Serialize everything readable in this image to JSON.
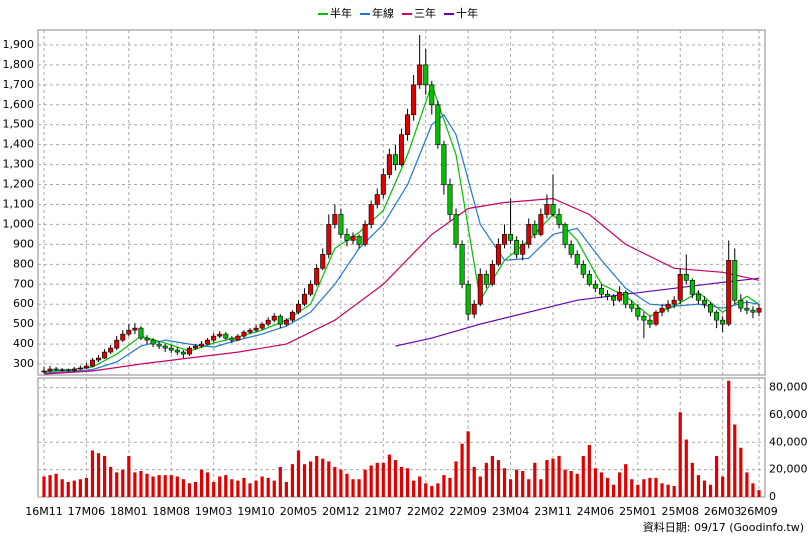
{
  "chart_data": {
    "type": "candlestick",
    "legend": "top",
    "grid": true,
    "up_color": "#e00000",
    "down_color": "#00c000",
    "categories": [
      "16M11",
      null,
      null,
      null,
      null,
      null,
      null,
      "17M06",
      null,
      null,
      null,
      null,
      null,
      null,
      "18M01",
      null,
      null,
      null,
      null,
      null,
      null,
      "18M08",
      null,
      null,
      null,
      null,
      null,
      null,
      "19M03",
      null,
      null,
      null,
      null,
      null,
      null,
      "19M10",
      null,
      null,
      null,
      null,
      null,
      null,
      "20M05",
      null,
      null,
      null,
      null,
      null,
      null,
      "20M12",
      null,
      null,
      null,
      null,
      null,
      null,
      "21M07",
      null,
      null,
      null,
      null,
      null,
      null,
      "22M02",
      null,
      null,
      null,
      null,
      null,
      null,
      "22M09",
      null,
      null,
      null,
      null,
      null,
      null,
      "23M04",
      null,
      null,
      null,
      null,
      null,
      null,
      "23M11",
      null,
      null,
      null,
      null,
      null,
      null,
      "24M06",
      null,
      null,
      null,
      null,
      null,
      null,
      "25M01",
      null,
      null,
      null,
      null,
      null,
      null,
      "25M08",
      null,
      null,
      null,
      null,
      null,
      null,
      "26M03",
      null,
      null,
      null,
      null,
      null,
      "26M09"
    ],
    "ohlc": [
      [
        260,
        285,
        255,
        265
      ],
      [
        265,
        290,
        260,
        275
      ],
      [
        275,
        285,
        265,
        270
      ],
      [
        270,
        280,
        262,
        272
      ],
      [
        272,
        278,
        260,
        268
      ],
      [
        268,
        285,
        262,
        275
      ],
      [
        275,
        292,
        270,
        280
      ],
      [
        280,
        305,
        275,
        290
      ],
      [
        290,
        330,
        285,
        320
      ],
      [
        320,
        345,
        310,
        330
      ],
      [
        330,
        375,
        325,
        360
      ],
      [
        360,
        395,
        350,
        380
      ],
      [
        380,
        440,
        370,
        420
      ],
      [
        420,
        470,
        410,
        450
      ],
      [
        450,
        500,
        440,
        470
      ],
      [
        470,
        505,
        450,
        480
      ],
      [
        480,
        490,
        420,
        430
      ],
      [
        430,
        445,
        400,
        420
      ],
      [
        420,
        430,
        385,
        400
      ],
      [
        400,
        415,
        375,
        390
      ],
      [
        390,
        400,
        360,
        380
      ],
      [
        380,
        395,
        355,
        370
      ],
      [
        370,
        385,
        345,
        360
      ],
      [
        360,
        370,
        330,
        350
      ],
      [
        350,
        390,
        340,
        380
      ],
      [
        380,
        400,
        370,
        390
      ],
      [
        390,
        415,
        380,
        400
      ],
      [
        400,
        430,
        395,
        420
      ],
      [
        420,
        455,
        410,
        440
      ],
      [
        440,
        465,
        430,
        450
      ],
      [
        450,
        460,
        420,
        430
      ],
      [
        430,
        440,
        405,
        420
      ],
      [
        420,
        450,
        415,
        440
      ],
      [
        440,
        470,
        430,
        460
      ],
      [
        460,
        480,
        450,
        470
      ],
      [
        470,
        495,
        460,
        480
      ],
      [
        480,
        510,
        470,
        500
      ],
      [
        500,
        535,
        490,
        520
      ],
      [
        520,
        555,
        510,
        540
      ],
      [
        540,
        550,
        480,
        500
      ],
      [
        500,
        530,
        490,
        520
      ],
      [
        520,
        570,
        510,
        560
      ],
      [
        560,
        620,
        550,
        600
      ],
      [
        600,
        680,
        590,
        650
      ],
      [
        650,
        720,
        640,
        700
      ],
      [
        700,
        800,
        690,
        780
      ],
      [
        780,
        880,
        770,
        850
      ],
      [
        850,
        1050,
        830,
        1000
      ],
      [
        1000,
        1100,
        980,
        1050
      ],
      [
        1050,
        1080,
        930,
        950
      ],
      [
        950,
        980,
        890,
        920
      ],
      [
        920,
        960,
        900,
        940
      ],
      [
        940,
        950,
        880,
        900
      ],
      [
        900,
        1020,
        890,
        1000
      ],
      [
        1000,
        1120,
        980,
        1100
      ],
      [
        1100,
        1180,
        1080,
        1150
      ],
      [
        1150,
        1280,
        1130,
        1250
      ],
      [
        1250,
        1380,
        1230,
        1350
      ],
      [
        1350,
        1400,
        1270,
        1300
      ],
      [
        1300,
        1480,
        1290,
        1450
      ],
      [
        1450,
        1580,
        1420,
        1550
      ],
      [
        1550,
        1750,
        1520,
        1700
      ],
      [
        1700,
        1950,
        1680,
        1800
      ],
      [
        1800,
        1880,
        1650,
        1700
      ],
      [
        1700,
        1720,
        1550,
        1600
      ],
      [
        1600,
        1620,
        1380,
        1400
      ],
      [
        1400,
        1420,
        1150,
        1200
      ],
      [
        1200,
        1230,
        1020,
        1050
      ],
      [
        1050,
        1080,
        880,
        900
      ],
      [
        900,
        920,
        680,
        700
      ],
      [
        700,
        720,
        520,
        550
      ],
      [
        550,
        620,
        530,
        600
      ],
      [
        600,
        780,
        590,
        750
      ],
      [
        750,
        770,
        680,
        700
      ],
      [
        700,
        820,
        690,
        800
      ],
      [
        800,
        930,
        790,
        900
      ],
      [
        900,
        1000,
        880,
        950
      ],
      [
        950,
        1130,
        900,
        920
      ],
      [
        920,
        940,
        830,
        850
      ],
      [
        850,
        920,
        820,
        900
      ],
      [
        900,
        1030,
        880,
        1000
      ],
      [
        1000,
        1020,
        930,
        950
      ],
      [
        950,
        1080,
        940,
        1050
      ],
      [
        1050,
        1150,
        1030,
        1100
      ],
      [
        1100,
        1250,
        1040,
        1050
      ],
      [
        1050,
        1080,
        980,
        1000
      ],
      [
        1000,
        1010,
        880,
        900
      ],
      [
        900,
        920,
        830,
        850
      ],
      [
        850,
        870,
        780,
        800
      ],
      [
        800,
        820,
        730,
        750
      ],
      [
        750,
        770,
        690,
        700
      ],
      [
        700,
        720,
        660,
        680
      ],
      [
        680,
        700,
        630,
        650
      ],
      [
        650,
        670,
        620,
        640
      ],
      [
        640,
        650,
        590,
        620
      ],
      [
        620,
        690,
        610,
        660
      ],
      [
        660,
        670,
        580,
        600
      ],
      [
        600,
        620,
        560,
        580
      ],
      [
        580,
        600,
        520,
        540
      ],
      [
        540,
        560,
        430,
        520
      ],
      [
        520,
        540,
        480,
        500
      ],
      [
        500,
        570,
        490,
        560
      ],
      [
        560,
        600,
        540,
        580
      ],
      [
        580,
        620,
        560,
        600
      ],
      [
        600,
        640,
        580,
        620
      ],
      [
        620,
        780,
        600,
        750
      ],
      [
        750,
        850,
        700,
        720
      ],
      [
        720,
        730,
        630,
        650
      ],
      [
        650,
        670,
        600,
        620
      ],
      [
        620,
        640,
        580,
        600
      ],
      [
        600,
        610,
        540,
        560
      ],
      [
        560,
        570,
        480,
        520
      ],
      [
        520,
        540,
        460,
        500
      ],
      [
        500,
        920,
        490,
        820
      ],
      [
        820,
        880,
        600,
        620
      ],
      [
        620,
        650,
        560,
        580
      ],
      [
        580,
        620,
        550,
        570
      ],
      [
        570,
        590,
        530,
        560
      ],
      [
        560,
        600,
        540,
        580
      ]
    ],
    "series": [
      {
        "name": "半年",
        "color": "#00c000",
        "x": [
          0,
          4,
          8,
          12,
          16,
          20,
          24,
          28,
          32,
          36,
          40,
          44,
          48,
          52,
          56,
          60,
          64,
          68,
          72,
          76,
          80,
          84,
          88,
          92,
          96,
          100,
          104,
          108,
          112,
          116,
          118
        ],
        "values": [
          262,
          270,
          285,
          350,
          440,
          405,
          365,
          405,
          435,
          470,
          520,
          600,
          880,
          960,
          1070,
          1350,
          1700,
          1350,
          620,
          820,
          920,
          1050,
          920,
          700,
          640,
          540,
          590,
          660,
          560,
          640,
          600
        ]
      },
      {
        "name": "年線",
        "color": "#1f78d1",
        "x": [
          0,
          4,
          8,
          12,
          16,
          20,
          24,
          28,
          32,
          36,
          40,
          44,
          48,
          52,
          56,
          60,
          64,
          66,
          68,
          72,
          76,
          80,
          84,
          88,
          92,
          96,
          100,
          104,
          108,
          112,
          116,
          118
        ],
        "values": [
          255,
          262,
          272,
          310,
          390,
          420,
          400,
          385,
          420,
          450,
          490,
          560,
          700,
          880,
          1000,
          1200,
          1500,
          1550,
          1450,
          1000,
          820,
          830,
          950,
          980,
          820,
          680,
          600,
          590,
          600,
          580,
          610,
          600
        ]
      },
      {
        "name": "三年",
        "color": "#cc0066",
        "x": [
          0,
          8,
          16,
          24,
          32,
          40,
          48,
          56,
          64,
          70,
          76,
          84,
          90,
          96,
          104,
          112,
          118
        ],
        "values": [
          250,
          265,
          300,
          330,
          360,
          400,
          520,
          700,
          950,
          1080,
          1110,
          1130,
          1050,
          900,
          780,
          760,
          720
        ]
      },
      {
        "name": "十年",
        "color": "#6a00b0",
        "x": [
          58,
          64,
          72,
          80,
          88,
          96,
          104,
          112,
          118
        ],
        "values": [
          390,
          430,
          500,
          560,
          620,
          650,
          680,
          710,
          730
        ]
      }
    ],
    "ylim": [
      245,
      1975
    ],
    "yticks": [
      300,
      400,
      500,
      600,
      700,
      800,
      900,
      {
        "value": 1000,
        "label": "1,000"
      },
      {
        "value": 1100,
        "label": "1,100"
      },
      {
        "value": 1200,
        "label": "1,200"
      },
      {
        "value": 1300,
        "label": "1,300"
      },
      {
        "value": 1400,
        "label": "1,400"
      },
      {
        "value": 1500,
        "label": "1,500"
      },
      {
        "value": 1600,
        "label": "1,600"
      },
      {
        "value": 1700,
        "label": "1,700"
      },
      {
        "value": 1800,
        "label": "1,800"
      },
      {
        "value": 1900,
        "label": "1,900"
      }
    ],
    "volume": {
      "type": "bar",
      "color": "#e00000",
      "values": [
        15000,
        16000,
        17000,
        13000,
        11000,
        12000,
        13000,
        14000,
        34000,
        32000,
        30000,
        22000,
        18000,
        20000,
        30000,
        18000,
        19000,
        17000,
        15000,
        16000,
        16000,
        16000,
        15000,
        13000,
        10000,
        11000,
        20000,
        18000,
        11000,
        15000,
        16000,
        13000,
        12000,
        14000,
        10000,
        12000,
        15000,
        14000,
        12000,
        22000,
        11000,
        24000,
        34000,
        24000,
        26000,
        30000,
        28000,
        26000,
        22000,
        20000,
        17000,
        13000,
        13000,
        20000,
        23000,
        25000,
        25000,
        31000,
        27000,
        22000,
        21000,
        12000,
        15000,
        10000,
        8000,
        10000,
        16000,
        14000,
        26000,
        39000,
        48000,
        22000,
        15000,
        25000,
        30000,
        27000,
        21000,
        13000,
        20000,
        19000,
        13000,
        25000,
        13000,
        27000,
        28000,
        30000,
        20000,
        19000,
        17000,
        30000,
        38000,
        21000,
        18000,
        14000,
        9000,
        18000,
        24000,
        13000,
        9000,
        13000,
        14000,
        14000,
        10000,
        9000,
        8000,
        62000,
        42000,
        25000,
        16000,
        12000,
        9000,
        30000,
        15000,
        85000,
        53000,
        36000,
        18000,
        10000,
        5000
      ],
      "ylim": [
        0,
        87000
      ],
      "yticks": [
        0,
        {
          "value": 20000,
          "label": "20,000"
        },
        {
          "value": 40000,
          "label": "40,000"
        },
        {
          "value": 60000,
          "label": "60,000"
        },
        {
          "value": 80000,
          "label": "80,000"
        }
      ]
    }
  },
  "footer": "資料日期: 09/17 (Goodinfo.tw)"
}
